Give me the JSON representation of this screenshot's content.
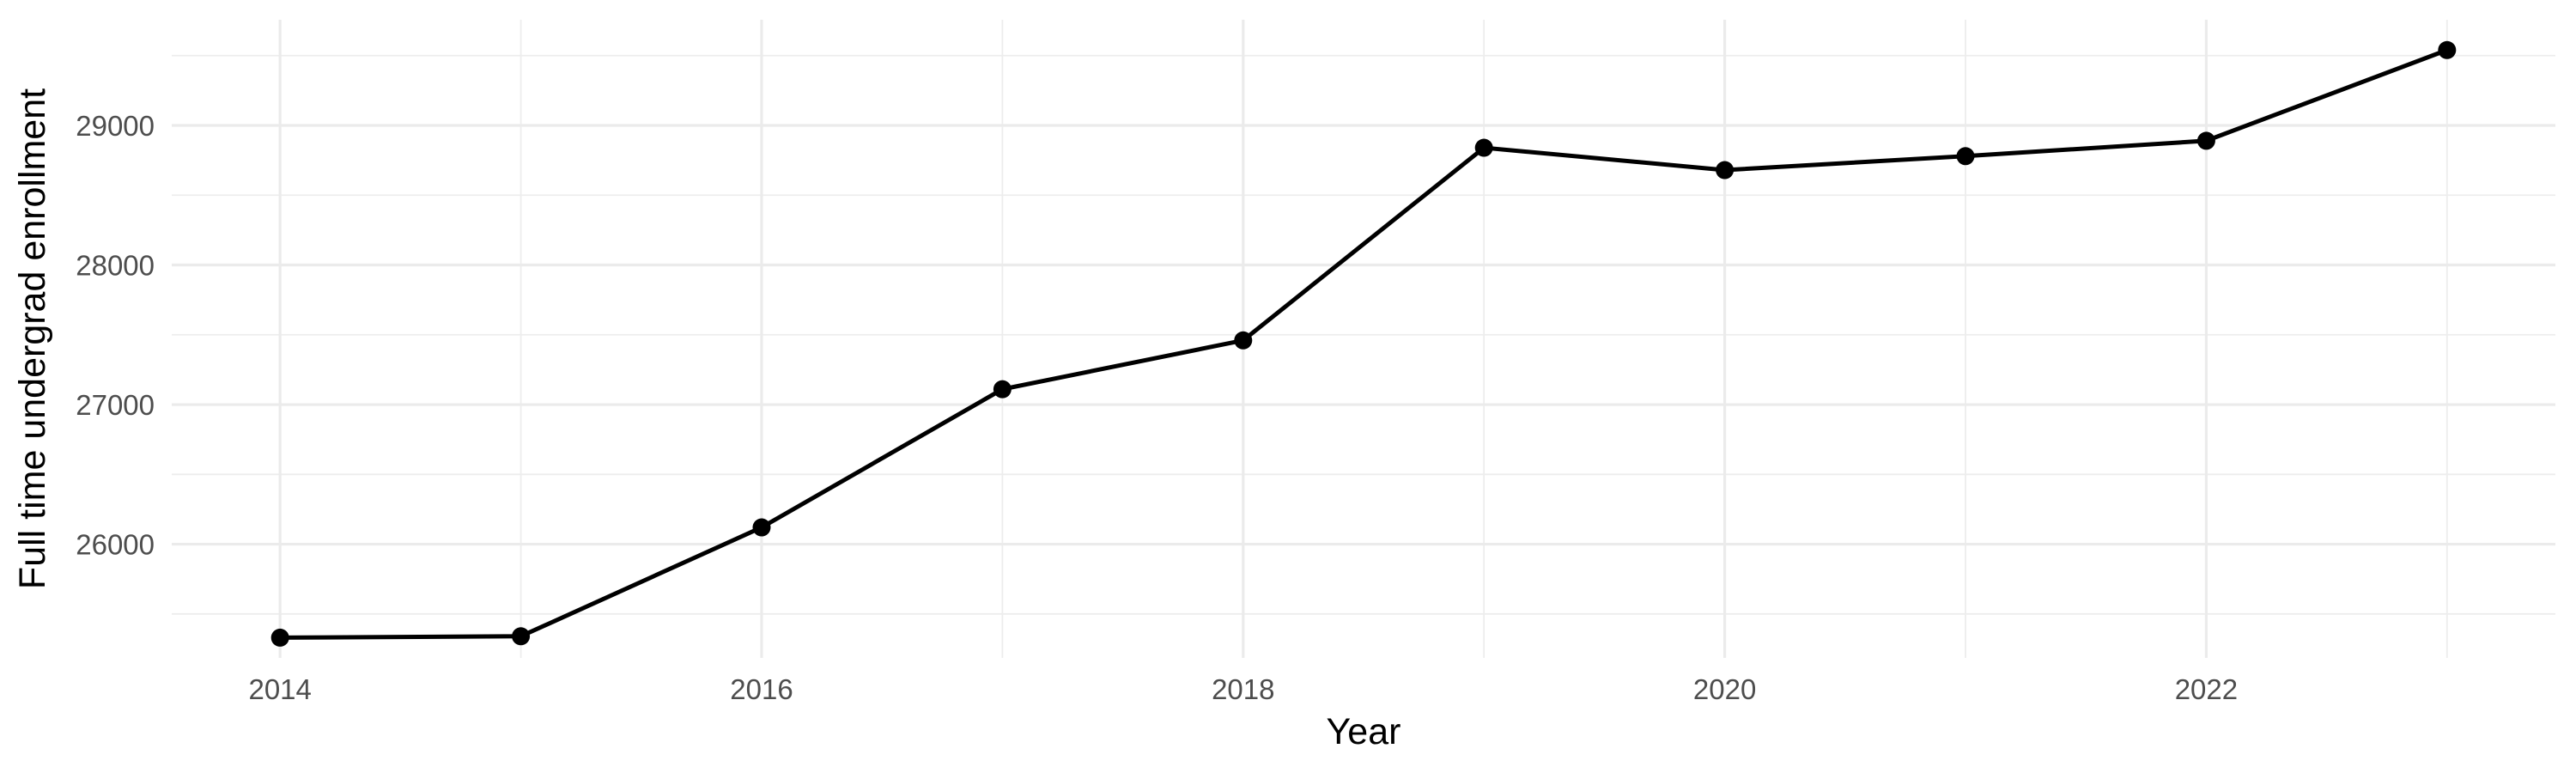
{
  "chart_data": {
    "type": "line",
    "title": "",
    "xlabel": "Year",
    "ylabel": "Full time undergrad enrollment",
    "x": [
      2014,
      2015,
      2016,
      2017,
      2018,
      2019,
      2020,
      2021,
      2022,
      2023
    ],
    "series": [
      {
        "name": "Full time undergrad enrollment",
        "values": [
          25330,
          25340,
          26120,
          27110,
          27460,
          28840,
          28680,
          28780,
          28890,
          29540
        ]
      }
    ],
    "x_major_ticks": [
      2014,
      2016,
      2018,
      2020,
      2022
    ],
    "x_tick_labels": [
      "2014",
      "2016",
      "2018",
      "2020",
      "2022"
    ],
    "x_minor_ticks": [
      2015,
      2017,
      2019,
      2021,
      2023
    ],
    "y_major_ticks": [
      26000,
      27000,
      28000,
      29000
    ],
    "y_tick_labels": [
      "26000",
      "27000",
      "28000",
      "29000"
    ],
    "y_minor_ticks": [
      25500,
      26500,
      27500,
      28500,
      29500
    ],
    "xlim": [
      2013.55,
      2023.45
    ],
    "ylim": [
      25185,
      29757
    ],
    "grid": true,
    "legend": false,
    "colors": {
      "background": "#FFFFFF",
      "line": "#000000",
      "point": "#000000",
      "grid_major": "#EBEBEB",
      "grid_minor": "#EDEDED",
      "tick_text": "#4D4D4D",
      "axis_title_text": "#000000"
    }
  }
}
